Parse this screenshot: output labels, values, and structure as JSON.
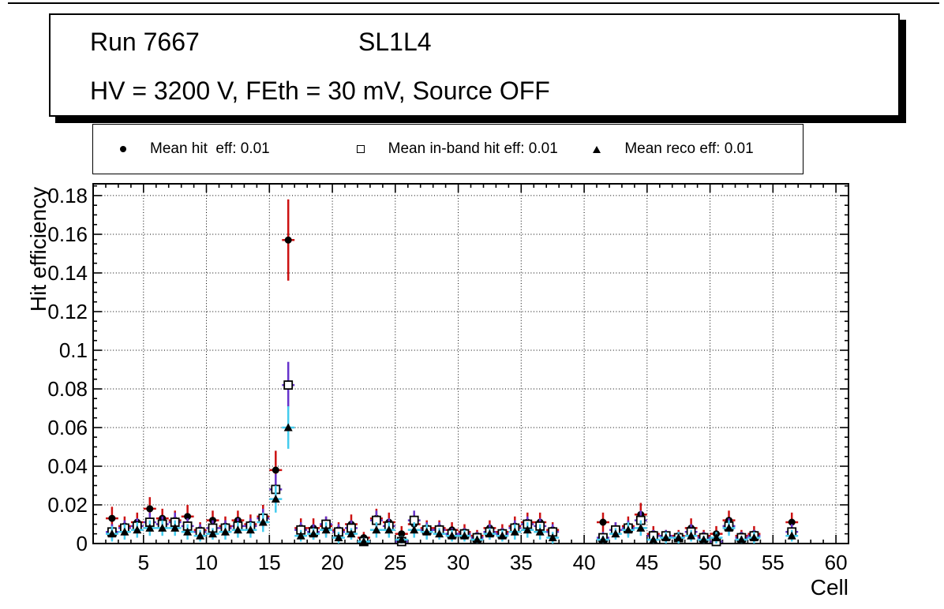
{
  "title_box": {
    "run": "Run 7667",
    "chamber": "SL1L4",
    "conditions": "HV = 3200 V, FEth = 30 mV, Source OFF"
  },
  "legend": {
    "entries": [
      {
        "marker": "filled-circle",
        "label": "Mean hit  eff: 0.01"
      },
      {
        "marker": "open-square",
        "label": "Mean in-band hit eff: 0.01"
      },
      {
        "marker": "filled-triangle",
        "label": "Mean reco eff: 0.01"
      }
    ]
  },
  "colors": {
    "marker": "#000000",
    "hit_eff_error": "#cc1111",
    "inband_eff_error": "#6633cc",
    "reco_eff_error": "#44ccee",
    "grid": "#000000",
    "background": "#ffffff"
  },
  "chart_data": {
    "type": "scatter",
    "title": "",
    "xlabel": "Cell",
    "ylabel": "Hit efficiency",
    "xlim": [
      1,
      61
    ],
    "ylim": [
      0,
      0.1861
    ],
    "xticks": [
      5,
      10,
      15,
      20,
      25,
      30,
      35,
      40,
      45,
      50,
      55,
      60
    ],
    "yticks": [
      0,
      0.02,
      0.04,
      0.06,
      0.08,
      0.1,
      0.12,
      0.14,
      0.16,
      0.18
    ],
    "grid": "dotted",
    "legend_position": "top",
    "points_format": "[cell, efficiency, error]; markers drawn at cell bin center, x-error = half bin width",
    "series": [
      {
        "name": "Mean hit eff",
        "marker": "filled-circle",
        "marker_color": "#000000",
        "error_color": "#cc1111",
        "points": [
          [
            2,
            0.013,
            0.006
          ],
          [
            3,
            0.009,
            0.005
          ],
          [
            4,
            0.011,
            0.005
          ],
          [
            5,
            0.018,
            0.006
          ],
          [
            6,
            0.013,
            0.005
          ],
          [
            7,
            0.012,
            0.005
          ],
          [
            8,
            0.014,
            0.006
          ],
          [
            9,
            0.007,
            0.004
          ],
          [
            10,
            0.012,
            0.005
          ],
          [
            11,
            0.009,
            0.005
          ],
          [
            12,
            0.012,
            0.005
          ],
          [
            13,
            0.01,
            0.005
          ],
          [
            14,
            0.014,
            0.006
          ],
          [
            15,
            0.038,
            0.01
          ],
          [
            16,
            0.157,
            0.021
          ],
          [
            17,
            0.008,
            0.005
          ],
          [
            18,
            0.008,
            0.005
          ],
          [
            19,
            0.009,
            0.005
          ],
          [
            20,
            0.007,
            0.004
          ],
          [
            21,
            0.01,
            0.005
          ],
          [
            22,
            0.003,
            0.003
          ],
          [
            23,
            0.013,
            0.005
          ],
          [
            24,
            0.011,
            0.005
          ],
          [
            25,
            0.005,
            0.004
          ],
          [
            26,
            0.01,
            0.005
          ],
          [
            27,
            0.008,
            0.004
          ],
          [
            28,
            0.008,
            0.004
          ],
          [
            29,
            0.007,
            0.004
          ],
          [
            30,
            0.006,
            0.004
          ],
          [
            31,
            0.004,
            0.003
          ],
          [
            32,
            0.008,
            0.004
          ],
          [
            33,
            0.006,
            0.004
          ],
          [
            34,
            0.009,
            0.005
          ],
          [
            35,
            0.011,
            0.005
          ],
          [
            36,
            0.011,
            0.005
          ],
          [
            37,
            0.007,
            0.004
          ],
          [
            41,
            0.011,
            0.005
          ],
          [
            42,
            0.007,
            0.004
          ],
          [
            43,
            0.009,
            0.005
          ],
          [
            44,
            0.015,
            0.006
          ],
          [
            45,
            0.005,
            0.004
          ],
          [
            46,
            0.004,
            0.003
          ],
          [
            47,
            0.004,
            0.003
          ],
          [
            48,
            0.008,
            0.005
          ],
          [
            49,
            0.004,
            0.003
          ],
          [
            50,
            0.005,
            0.004
          ],
          [
            51,
            0.012,
            0.005
          ],
          [
            52,
            0.004,
            0.003
          ],
          [
            53,
            0.005,
            0.004
          ],
          [
            56,
            0.011,
            0.005
          ]
        ]
      },
      {
        "name": "Mean in-band hit eff",
        "marker": "open-square",
        "marker_color": "#000000",
        "error_color": "#6633cc",
        "points": [
          [
            2,
            0.006,
            0.004
          ],
          [
            3,
            0.008,
            0.004
          ],
          [
            4,
            0.009,
            0.004
          ],
          [
            5,
            0.011,
            0.005
          ],
          [
            6,
            0.01,
            0.004
          ],
          [
            7,
            0.011,
            0.005
          ],
          [
            8,
            0.009,
            0.004
          ],
          [
            9,
            0.006,
            0.004
          ],
          [
            10,
            0.008,
            0.004
          ],
          [
            11,
            0.008,
            0.004
          ],
          [
            12,
            0.009,
            0.004
          ],
          [
            13,
            0.009,
            0.004
          ],
          [
            14,
            0.013,
            0.005
          ],
          [
            15,
            0.028,
            0.008
          ],
          [
            16,
            0.082,
            0.012
          ],
          [
            17,
            0.007,
            0.004
          ],
          [
            18,
            0.006,
            0.004
          ],
          [
            19,
            0.01,
            0.004
          ],
          [
            20,
            0.006,
            0.004
          ],
          [
            21,
            0.008,
            0.004
          ],
          [
            22,
            0.001,
            0.002
          ],
          [
            23,
            0.012,
            0.005
          ],
          [
            24,
            0.009,
            0.004
          ],
          [
            25,
            0.001,
            0.002
          ],
          [
            26,
            0.012,
            0.005
          ],
          [
            27,
            0.007,
            0.004
          ],
          [
            28,
            0.007,
            0.004
          ],
          [
            29,
            0.005,
            0.003
          ],
          [
            30,
            0.005,
            0.003
          ],
          [
            31,
            0.003,
            0.003
          ],
          [
            32,
            0.006,
            0.004
          ],
          [
            33,
            0.005,
            0.003
          ],
          [
            34,
            0.008,
            0.004
          ],
          [
            35,
            0.01,
            0.004
          ],
          [
            36,
            0.009,
            0.004
          ],
          [
            37,
            0.006,
            0.004
          ],
          [
            41,
            0.003,
            0.003
          ],
          [
            42,
            0.007,
            0.004
          ],
          [
            43,
            0.008,
            0.004
          ],
          [
            44,
            0.012,
            0.005
          ],
          [
            45,
            0.004,
            0.003
          ],
          [
            46,
            0.004,
            0.003
          ],
          [
            47,
            0.003,
            0.003
          ],
          [
            48,
            0.006,
            0.004
          ],
          [
            49,
            0.003,
            0.003
          ],
          [
            50,
            0.001,
            0.002
          ],
          [
            51,
            0.009,
            0.004
          ],
          [
            52,
            0.003,
            0.003
          ],
          [
            53,
            0.004,
            0.003
          ],
          [
            56,
            0.006,
            0.004
          ]
        ]
      },
      {
        "name": "Mean reco eff",
        "marker": "filled-triangle",
        "marker_color": "#000000",
        "error_color": "#44ccee",
        "points": [
          [
            2,
            0.005,
            0.004
          ],
          [
            3,
            0.006,
            0.004
          ],
          [
            4,
            0.007,
            0.004
          ],
          [
            5,
            0.008,
            0.004
          ],
          [
            6,
            0.008,
            0.004
          ],
          [
            7,
            0.008,
            0.004
          ],
          [
            8,
            0.006,
            0.004
          ],
          [
            9,
            0.004,
            0.003
          ],
          [
            10,
            0.005,
            0.003
          ],
          [
            11,
            0.006,
            0.004
          ],
          [
            12,
            0.007,
            0.004
          ],
          [
            13,
            0.007,
            0.004
          ],
          [
            14,
            0.011,
            0.005
          ],
          [
            15,
            0.023,
            0.007
          ],
          [
            16,
            0.06,
            0.011
          ],
          [
            17,
            0.004,
            0.003
          ],
          [
            18,
            0.005,
            0.003
          ],
          [
            19,
            0.007,
            0.004
          ],
          [
            20,
            0.003,
            0.003
          ],
          [
            21,
            0.005,
            0.003
          ],
          [
            22,
            0.001,
            0.002
          ],
          [
            23,
            0.007,
            0.004
          ],
          [
            24,
            0.007,
            0.004
          ],
          [
            25,
            0.002,
            0.002
          ],
          [
            26,
            0.007,
            0.004
          ],
          [
            27,
            0.006,
            0.004
          ],
          [
            28,
            0.005,
            0.003
          ],
          [
            29,
            0.004,
            0.003
          ],
          [
            30,
            0.004,
            0.003
          ],
          [
            31,
            0.002,
            0.002
          ],
          [
            32,
            0.005,
            0.003
          ],
          [
            33,
            0.004,
            0.003
          ],
          [
            34,
            0.006,
            0.004
          ],
          [
            35,
            0.007,
            0.004
          ],
          [
            36,
            0.006,
            0.004
          ],
          [
            37,
            0.003,
            0.003
          ],
          [
            41,
            0.002,
            0.002
          ],
          [
            42,
            0.005,
            0.003
          ],
          [
            43,
            0.007,
            0.004
          ],
          [
            44,
            0.008,
            0.004
          ],
          [
            45,
            0.002,
            0.002
          ],
          [
            46,
            0.003,
            0.003
          ],
          [
            47,
            0.003,
            0.003
          ],
          [
            48,
            0.004,
            0.003
          ],
          [
            49,
            0.002,
            0.002
          ],
          [
            50,
            0.003,
            0.003
          ],
          [
            51,
            0.008,
            0.004
          ],
          [
            52,
            0.002,
            0.002
          ],
          [
            53,
            0.003,
            0.003
          ],
          [
            56,
            0.004,
            0.003
          ]
        ]
      }
    ]
  }
}
